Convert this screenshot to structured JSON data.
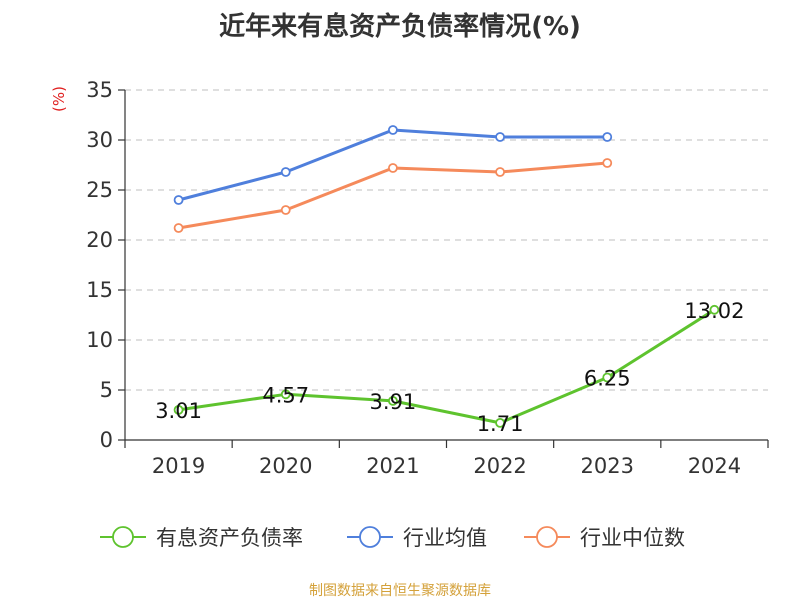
{
  "title": "近年来有息资产负债率情况(%)",
  "y_unit": "(%)",
  "source": "制图数据来自恒生聚源数据库",
  "colors": {
    "series_0": "#5ec32e",
    "series_1": "#4f7fdc",
    "series_2": "#f58a5b",
    "grid": "#cccccc",
    "axis": "#333333",
    "unit": "#e01f1f",
    "source": "#d4a13a"
  },
  "chart_data": {
    "type": "line",
    "title": "近年来有息资产负债率情况(%)",
    "xlabel": "",
    "ylabel": "(%)",
    "categories": [
      "2019",
      "2020",
      "2021",
      "2022",
      "2023",
      "2024"
    ],
    "ylim": [
      0,
      35
    ],
    "yticks": [
      0,
      5,
      10,
      15,
      20,
      25,
      30,
      35
    ],
    "grid": true,
    "legend_position": "bottom",
    "series": [
      {
        "name": "有息资产负债率",
        "values": [
          3.01,
          4.57,
          3.91,
          1.71,
          6.25,
          13.02
        ],
        "labels": [
          "3.01",
          "4.57",
          "3.91",
          "1.71",
          "6.25",
          "13.02"
        ]
      },
      {
        "name": "行业均值",
        "values": [
          24.0,
          26.8,
          31.0,
          30.3,
          30.3,
          null
        ]
      },
      {
        "name": "行业中位数",
        "values": [
          21.2,
          23.0,
          27.2,
          26.8,
          27.7,
          null
        ]
      }
    ]
  }
}
